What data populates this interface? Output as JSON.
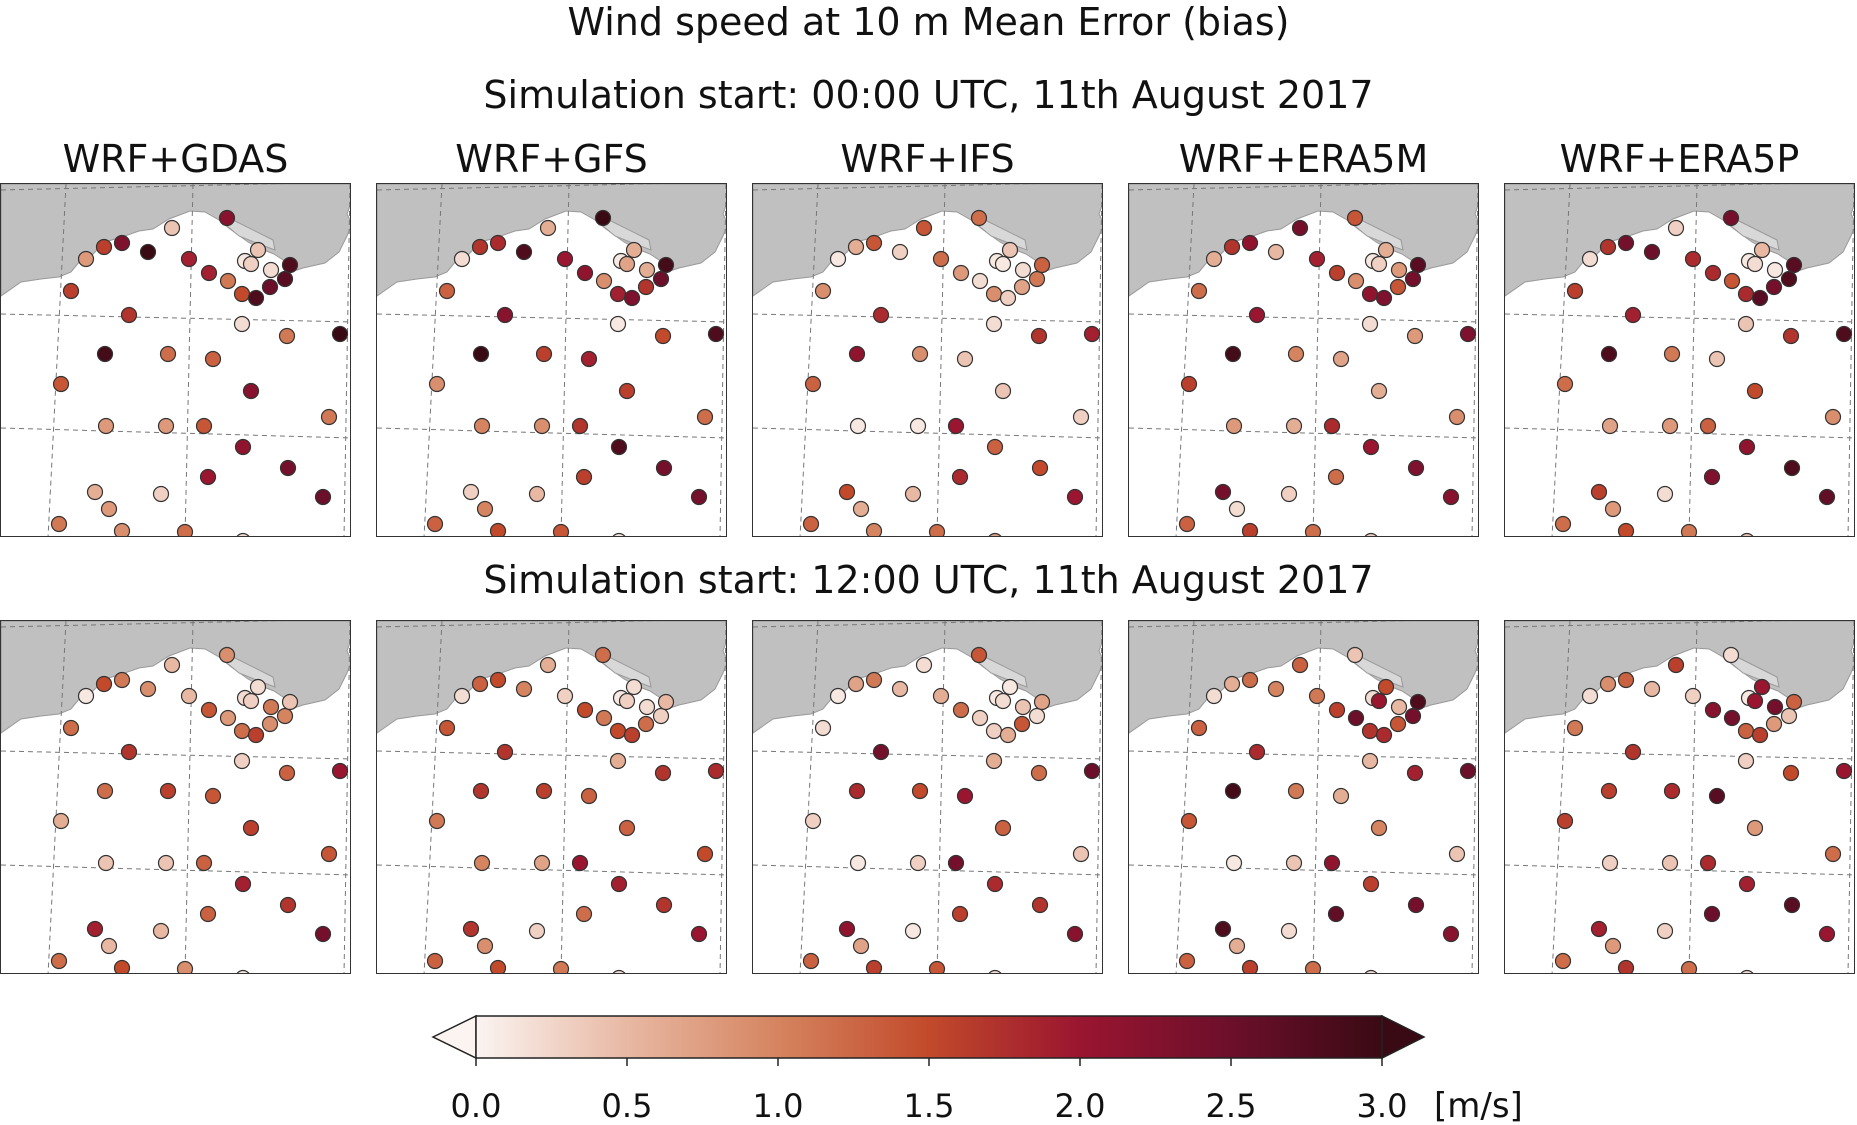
{
  "title": "Wind speed at 10 m Mean Error (bias)",
  "rows": [
    {
      "label": "Simulation start: 00:00 UTC, 11th August 2017"
    },
    {
      "label": "Simulation start: 12:00 UTC, 11th August 2017"
    }
  ],
  "models": [
    "WRF+GDAS",
    "WRF+GFS",
    "WRF+IFS",
    "WRF+ERA5M",
    "WRF+ERA5P"
  ],
  "colorbar": {
    "min": 0.0,
    "max": 3.0,
    "extend": "both",
    "ticks": [
      "0.0",
      "0.5",
      "1.0",
      "1.5",
      "2.0",
      "2.5",
      "3.0"
    ],
    "unit": "[m/s]",
    "colors": [
      "#fbf4f1",
      "#e8b8a3",
      "#d5845f",
      "#c24a2b",
      "#9a1530",
      "#6c0f2b",
      "#3a0a14"
    ]
  },
  "map_colors": {
    "land": "#c0c0c0",
    "sea": "#ffffff",
    "grid": "#777777"
  },
  "station_bias": [
    [
      [
        1.6,
        0.8,
        1.6,
        2.3,
        3.0,
        0.4,
        1.9,
        2.2,
        0.1,
        1.1,
        0.4,
        0.3,
        0.2,
        1.9,
        1.5,
        2.8,
        2.5,
        2.7,
        2.8,
        0.2,
        1.7,
        2.9,
        1.2,
        1.3,
        1.1,
        3.0,
        1.4,
        2.2,
        0.8,
        0.8,
        1.4,
        2.1,
        1.1,
        2.0,
        2.4,
        0.6,
        0.8,
        0.3,
        0.9,
        1.2,
        2.5,
        1.1,
        0.2
      ],
      [
        1.3,
        0.2,
        1.7,
        1.8,
        2.8,
        0.6,
        2.0,
        3.0,
        0.1,
        0.9,
        0.6,
        0.7,
        0.6,
        2.1,
        1.9,
        2.3,
        1.7,
        2.5,
        2.9,
        0.1,
        2.2,
        3.0,
        1.6,
        1.9,
        1.5,
        2.8,
        0.9,
        1.6,
        1.0,
        0.9,
        1.7,
        2.8,
        1.2,
        1.6,
        2.4,
        0.3,
        1.0,
        0.5,
        1.5,
        1.4,
        2.4,
        1.3,
        0.1
      ],
      [
        0.9,
        0.1,
        0.6,
        1.4,
        0.3,
        1.4,
        1.2,
        1.2,
        0.1,
        0.2,
        0.4,
        0.1,
        0.2,
        0.8,
        0.9,
        0.3,
        0.7,
        1.1,
        1.3,
        0.2,
        1.8,
        2.1,
        0.9,
        0.4,
        1.7,
        1.9,
        1.3,
        0.4,
        0.1,
        0.1,
        2.0,
        1.3,
        0.3,
        1.8,
        1.5,
        1.5,
        0.6,
        0.5,
        1.0,
        1.2,
        2.0,
        1.3,
        0.7
      ],
      [
        1.2,
        0.6,
        1.7,
        2.1,
        0.5,
        2.4,
        1.9,
        1.4,
        0.1,
        0.9,
        0.6,
        0.3,
        0.8,
        1.6,
        2.1,
        2.3,
        1.4,
        2.4,
        2.7,
        0.2,
        2.0,
        2.9,
        1.0,
        0.7,
        0.8,
        2.3,
        1.6,
        0.6,
        0.8,
        0.6,
        1.8,
        2.0,
        0.9,
        1.2,
        2.3,
        2.4,
        0.2,
        0.3,
        1.6,
        1.2,
        2.2,
        1.3,
        0.3
      ],
      [
        1.6,
        0.2,
        1.7,
        2.4,
        2.5,
        0.3,
        1.8,
        2.4,
        0.1,
        1.4,
        0.5,
        0.2,
        0.1,
        1.8,
        1.8,
        2.7,
        2.4,
        2.8,
        2.7,
        0.4,
        1.9,
        2.8,
        1.1,
        0.4,
        1.7,
        2.8,
        1.2,
        1.5,
        0.7,
        0.8,
        1.3,
        2.1,
        0.9,
        2.3,
        2.8,
        1.6,
        0.8,
        0.2,
        1.5,
        1.1,
        2.6,
        1.2,
        0.4
      ]
    ],
    [
      [
        1.2,
        0.1,
        1.5,
        1.1,
        0.9,
        0.5,
        0.5,
        0.9,
        0.2,
        0.8,
        0.2,
        0.3,
        1.1,
        1.4,
        1.2,
        1.6,
        0.9,
        1.0,
        0.4,
        0.3,
        1.7,
        1.2,
        1.6,
        1.4,
        1.3,
        2.0,
        0.6,
        1.6,
        0.4,
        0.4,
        1.3,
        1.9,
        1.4,
        1.3,
        1.7,
        1.9,
        0.5,
        0.5,
        1.5,
        0.9,
        2.4,
        1.2,
        0.1
      ],
      [
        1.4,
        0.2,
        1.3,
        1.5,
        1.0,
        0.6,
        0.3,
        1.2,
        0.1,
        1.1,
        0.2,
        0.3,
        0.2,
        1.5,
        1.5,
        1.6,
        1.2,
        0.3,
        0.5,
        0.6,
        1.7,
        1.7,
        1.6,
        1.3,
        1.7,
        1.8,
        1.1,
        1.3,
        1.0,
        0.7,
        2.0,
        1.9,
        1.5,
        1.2,
        1.7,
        1.7,
        0.9,
        0.3,
        1.5,
        1.1,
        2.0,
        1.3,
        0.2
      ],
      [
        0.2,
        0.1,
        0.7,
        1.1,
        0.5,
        0.2,
        0.6,
        1.4,
        0.1,
        0.3,
        0.1,
        0.2,
        0.4,
        1.2,
        0.3,
        0.6,
        1.4,
        0.2,
        0.7,
        0.6,
        2.4,
        1.8,
        1.5,
        2.0,
        1.2,
        2.5,
        0.3,
        1.3,
        0.1,
        0.3,
        2.4,
        1.8,
        0.4,
        1.6,
        1.7,
        2.1,
        0.7,
        0.1,
        1.6,
        1.4,
        2.2,
        1.3,
        0.2
      ],
      [
        1.3,
        0.2,
        0.6,
        1.2,
        1.0,
        1.3,
        1.1,
        0.4,
        0.2,
        2.5,
        1.5,
        2.0,
        0.5,
        1.6,
        1.7,
        1.8,
        1.4,
        2.4,
        2.8,
        0.5,
        1.8,
        2.9,
        1.1,
        0.6,
        1.9,
        2.5,
        1.4,
        1.0,
        0.1,
        0.4,
        2.1,
        1.6,
        0.4,
        2.6,
        2.4,
        2.8,
        0.6,
        0.2,
        1.6,
        1.2,
        2.2,
        1.3,
        0.2
      ],
      [
        1.1,
        0.2,
        0.9,
        1.3,
        0.5,
        1.6,
        0.3,
        0.2,
        0.1,
        2.4,
        2.0,
        2.0,
        2.4,
        2.2,
        1.3,
        1.6,
        0.8,
        0.4,
        1.3,
        0.3,
        1.7,
        1.6,
        1.8,
        2.7,
        1.5,
        2.0,
        1.6,
        0.8,
        0.3,
        0.4,
        1.8,
        1.9,
        1.2,
        2.5,
        2.7,
        1.9,
        0.8,
        0.3,
        1.7,
        1.2,
        2.0,
        1.2,
        0.2
      ]
    ]
  ]
}
